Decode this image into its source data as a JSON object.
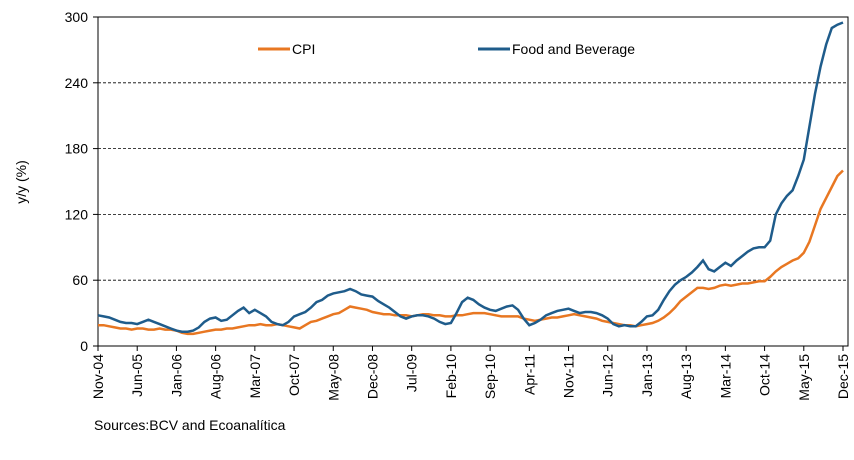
{
  "chart_data": {
    "type": "line",
    "ylabel": "y/y (%)",
    "source": "Sources:BCV and Ecoanalítica",
    "categories": [
      "Nov-04",
      null,
      null,
      null,
      null,
      null,
      null,
      "Jun-05",
      null,
      null,
      null,
      null,
      null,
      null,
      "Jan-06",
      null,
      null,
      null,
      null,
      null,
      null,
      "Aug-06",
      null,
      null,
      null,
      null,
      null,
      null,
      "Mar-07",
      null,
      null,
      null,
      null,
      null,
      null,
      "Oct-07",
      null,
      null,
      null,
      null,
      null,
      null,
      "May-08",
      null,
      null,
      null,
      null,
      null,
      null,
      "Dec-08",
      null,
      null,
      null,
      null,
      null,
      null,
      "Jul-09",
      null,
      null,
      null,
      null,
      null,
      null,
      "Feb-10",
      null,
      null,
      null,
      null,
      null,
      null,
      "Sep-10",
      null,
      null,
      null,
      null,
      null,
      null,
      "Apr-11",
      null,
      null,
      null,
      null,
      null,
      null,
      "Nov-11",
      null,
      null,
      null,
      null,
      null,
      null,
      "Jun-12",
      null,
      null,
      null,
      null,
      null,
      null,
      "Jan-13",
      null,
      null,
      null,
      null,
      null,
      null,
      "Aug-13",
      null,
      null,
      null,
      null,
      null,
      null,
      "Mar-14",
      null,
      null,
      null,
      null,
      null,
      null,
      "Oct-14",
      null,
      null,
      null,
      null,
      null,
      null,
      "May-15",
      null,
      null,
      null,
      null,
      null,
      null,
      "Dec-15"
    ],
    "series": [
      {
        "name": "CPI",
        "color": "#e87722",
        "values": [
          19,
          19,
          18,
          17,
          16,
          16,
          15,
          16,
          16,
          15,
          15,
          16,
          15,
          15,
          14,
          12,
          11,
          11,
          12,
          13,
          14,
          15,
          15,
          16,
          16,
          17,
          18,
          19,
          19,
          20,
          19,
          19,
          20,
          19,
          18,
          17,
          16,
          19,
          22,
          23,
          25,
          27,
          29,
          30,
          33,
          36,
          35,
          34,
          33,
          31,
          30,
          29,
          29,
          28,
          28,
          28,
          27,
          28,
          29,
          29,
          28,
          28,
          27,
          27,
          28,
          28,
          29,
          30,
          30,
          30,
          29,
          28,
          27,
          27,
          27,
          27,
          25,
          24,
          23,
          24,
          25,
          26,
          26,
          27,
          28,
          29,
          28,
          27,
          26,
          25,
          23,
          22,
          21,
          20,
          19,
          19,
          18,
          19,
          20,
          21,
          23,
          26,
          30,
          35,
          41,
          45,
          49,
          53,
          53,
          52,
          53,
          55,
          56,
          55,
          56,
          57,
          57,
          58,
          59,
          59,
          63,
          68,
          72,
          75,
          78,
          80,
          85,
          95,
          110,
          125,
          135,
          145,
          155,
          160
        ]
      },
      {
        "name": "Food and Beverage",
        "color": "#1f5c8b",
        "values": [
          28,
          27,
          26,
          24,
          22,
          21,
          21,
          20,
          22,
          24,
          22,
          20,
          18,
          16,
          14,
          13,
          13,
          14,
          17,
          22,
          25,
          26,
          23,
          24,
          28,
          32,
          35,
          30,
          33,
          30,
          27,
          22,
          20,
          19,
          22,
          27,
          29,
          31,
          35,
          40,
          42,
          46,
          48,
          49,
          50,
          52,
          50,
          47,
          46,
          45,
          41,
          38,
          35,
          31,
          27,
          25,
          27,
          28,
          28,
          27,
          25,
          22,
          20,
          21,
          30,
          40,
          44,
          42,
          38,
          35,
          33,
          32,
          34,
          36,
          37,
          33,
          25,
          19,
          21,
          24,
          28,
          30,
          32,
          33,
          34,
          32,
          30,
          31,
          31,
          30,
          28,
          25,
          20,
          18,
          19,
          18,
          18,
          22,
          27,
          28,
          33,
          42,
          50,
          56,
          60,
          63,
          67,
          72,
          78,
          70,
          68,
          72,
          76,
          73,
          78,
          82,
          86,
          89,
          90,
          90,
          96,
          120,
          130,
          137,
          142,
          155,
          170,
          200,
          230,
          255,
          275,
          290,
          293,
          295
        ]
      }
    ],
    "ylim": [
      0,
      300
    ],
    "yticks": [
      0,
      60,
      120,
      180,
      240,
      300
    ],
    "grid": true,
    "legend": "top"
  }
}
